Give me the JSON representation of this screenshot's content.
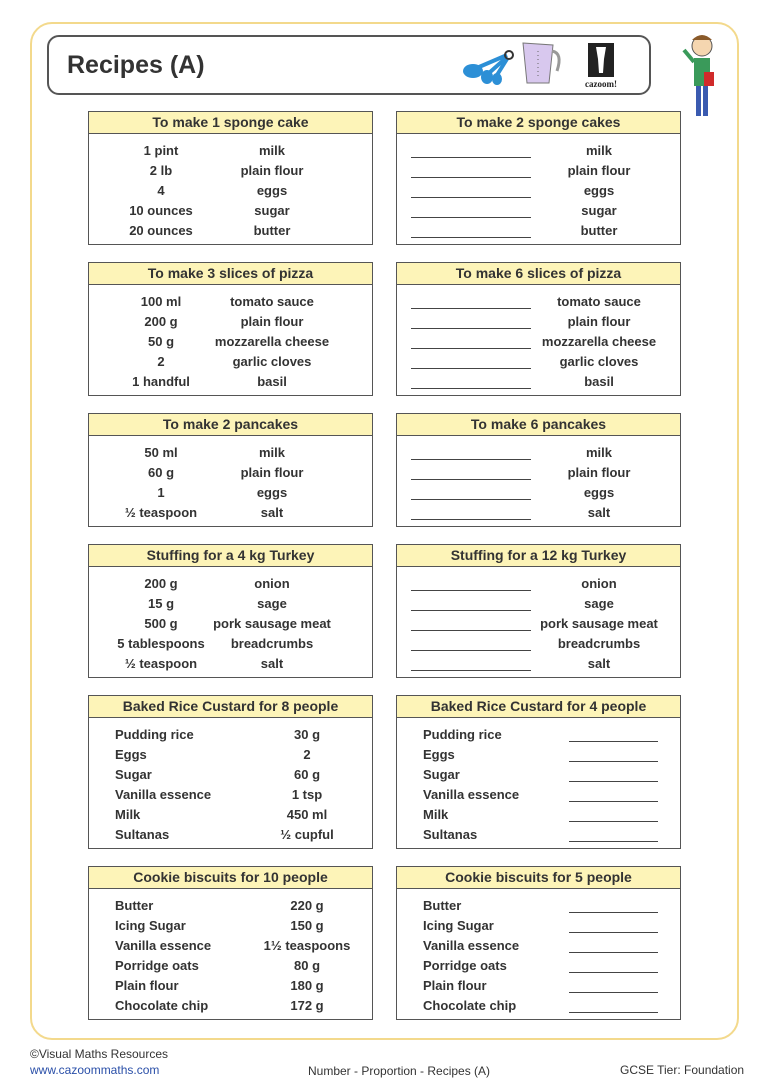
{
  "title": "Recipes (A)",
  "logo_text": "cazoom!",
  "boxes": [
    {
      "left": {
        "heading": "To make 1 sponge cake",
        "rows": [
          [
            "1 pint",
            "milk"
          ],
          [
            "2 lb",
            "plain flour"
          ],
          [
            "4",
            "eggs"
          ],
          [
            "10 ounces",
            "sugar"
          ],
          [
            "20 ounces",
            "butter"
          ]
        ]
      },
      "right": {
        "heading": "To make 2 sponge cakes",
        "items": [
          "milk",
          "plain flour",
          "eggs",
          "sugar",
          "butter"
        ]
      },
      "style": "A"
    },
    {
      "left": {
        "heading": "To make 3 slices of pizza",
        "rows": [
          [
            "100 ml",
            "tomato sauce"
          ],
          [
            "200 g",
            "plain flour"
          ],
          [
            "50 g",
            "mozzarella cheese"
          ],
          [
            "2",
            "garlic cloves"
          ],
          [
            "1 handful",
            "basil"
          ]
        ]
      },
      "right": {
        "heading": "To make 6 slices of pizza",
        "items": [
          "tomato sauce",
          "plain flour",
          "mozzarella cheese",
          "garlic cloves",
          "basil"
        ]
      },
      "style": "A"
    },
    {
      "left": {
        "heading": "To make 2 pancakes",
        "rows": [
          [
            "50 ml",
            "milk"
          ],
          [
            "60 g",
            "plain flour"
          ],
          [
            "1",
            "eggs"
          ],
          [
            "½ teaspoon",
            "salt"
          ]
        ]
      },
      "right": {
        "heading": "To make 6 pancakes",
        "items": [
          "milk",
          "plain flour",
          "eggs",
          "salt"
        ]
      },
      "style": "A"
    },
    {
      "left": {
        "heading": "Stuffing for a 4 kg Turkey",
        "rows": [
          [
            "200 g",
            "onion"
          ],
          [
            "15 g",
            "sage"
          ],
          [
            "500 g",
            "pork sausage meat"
          ],
          [
            "5 tablespoons",
            "breadcrumbs"
          ],
          [
            "½ teaspoon",
            "salt"
          ]
        ]
      },
      "right": {
        "heading": "Stuffing for a 12 kg Turkey",
        "items": [
          "onion",
          "sage",
          "pork sausage meat",
          "breadcrumbs",
          "salt"
        ]
      },
      "style": "A"
    },
    {
      "left": {
        "heading": "Baked Rice Custard for 8 people",
        "rows": [
          [
            "30 g",
            "Pudding rice"
          ],
          [
            "2",
            "Eggs"
          ],
          [
            "60 g",
            "Sugar"
          ],
          [
            "1 tsp",
            "Vanilla essence"
          ],
          [
            "450 ml",
            "Milk"
          ],
          [
            "½ cupful",
            "Sultanas"
          ]
        ]
      },
      "right": {
        "heading": "Baked Rice Custard for 4 people",
        "items": [
          "Pudding rice",
          "Eggs",
          "Sugar",
          "Vanilla essence",
          "Milk",
          "Sultanas"
        ]
      },
      "style": "B"
    },
    {
      "left": {
        "heading": "Cookie biscuits for 10 people",
        "rows": [
          [
            "220 g",
            "Butter"
          ],
          [
            "150 g",
            "Icing Sugar"
          ],
          [
            "1½ teaspoons",
            "Vanilla essence"
          ],
          [
            "80 g",
            "Porridge oats"
          ],
          [
            "180 g",
            "Plain flour"
          ],
          [
            "172 g",
            "Chocolate chip"
          ]
        ]
      },
      "right": {
        "heading": "Cookie biscuits for 5 people",
        "items": [
          "Butter",
          "Icing Sugar",
          "Vanilla essence",
          "Porridge oats",
          "Plain flour",
          "Chocolate chip"
        ]
      },
      "style": "B"
    }
  ],
  "footer": {
    "copyright": "©Visual Maths Resources",
    "website": "www.cazoommaths.com",
    "topic": "Number - Proportion - Recipes (A)",
    "tier": "GCSE Tier: Foundation"
  }
}
